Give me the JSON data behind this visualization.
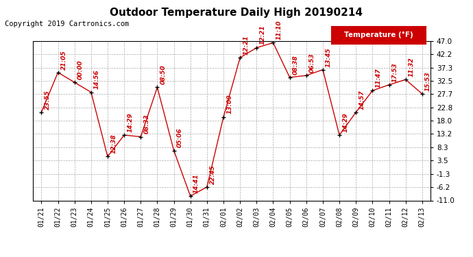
{
  "title": "Outdoor Temperature Daily High 20190214",
  "copyright": "Copyright 2019 Cartronics.com",
  "legend_label": "Temperature (°F)",
  "dates": [
    "01/21",
    "01/22",
    "01/23",
    "01/24",
    "01/25",
    "01/26",
    "01/27",
    "01/28",
    "01/29",
    "01/30",
    "01/31",
    "02/01",
    "02/02",
    "02/03",
    "02/04",
    "02/05",
    "02/06",
    "02/07",
    "02/08",
    "02/09",
    "02/10",
    "02/11",
    "02/12",
    "02/13"
  ],
  "temps": [
    21.1,
    35.6,
    32.0,
    28.4,
    5.0,
    12.8,
    12.2,
    30.2,
    7.2,
    -9.4,
    -6.1,
    19.4,
    41.0,
    44.6,
    46.4,
    33.8,
    34.5,
    36.6,
    12.8,
    21.1,
    29.0,
    31.1,
    33.0,
    27.8
  ],
  "annotations": [
    "23:55",
    "21:05",
    "00:00",
    "14:56",
    "12:38",
    "14:29",
    "08:33",
    "08:50",
    "05:06",
    "14:41",
    "22:45",
    "13:00",
    "12:21",
    "12:21",
    "11:10",
    "08:38",
    "06:53",
    "13:45",
    "14:29",
    "14:57",
    "11:47",
    "17:53",
    "11:32",
    "15:53"
  ],
  "ylim": [
    -11.0,
    47.0
  ],
  "yticks": [
    47.0,
    42.2,
    37.3,
    32.5,
    27.7,
    22.8,
    18.0,
    13.2,
    8.3,
    3.5,
    -1.3,
    -6.2,
    -11.0
  ],
  "line_color": "#cc0000",
  "marker_color": "#000000",
  "annotation_color": "#cc0000",
  "background_color": "#ffffff",
  "title_fontsize": 11,
  "copyright_fontsize": 7.5,
  "legend_bg": "#cc0000",
  "legend_fg": "#ffffff"
}
